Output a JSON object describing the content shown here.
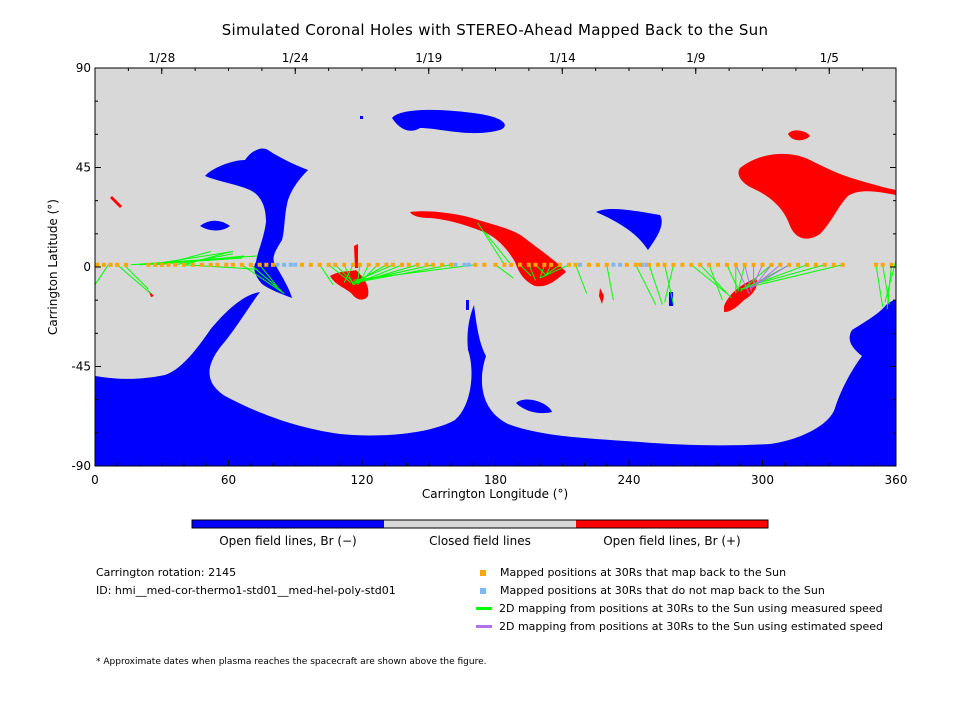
{
  "chart_data": {
    "type": "map",
    "title": "Simulated Coronal Holes with STEREO-Ahead Mapped Back to the Sun",
    "xlabel": "Carrington Longitude (°)",
    "ylabel": "Carrington Latitude (°)",
    "xlim": [
      0,
      360
    ],
    "ylim": [
      -90,
      90
    ],
    "x_ticks": [
      "0",
      "60",
      "120",
      "180",
      "240",
      "300",
      "360"
    ],
    "y_ticks": [
      "90",
      "45",
      "0",
      "-45",
      "-90"
    ],
    "top_date_ticks": [
      {
        "lon": 30,
        "label": "1/28"
      },
      {
        "lon": 90,
        "label": "1/24"
      },
      {
        "lon": 150,
        "label": "1/19"
      },
      {
        "lon": 210,
        "label": "1/14"
      },
      {
        "lon": 270,
        "label": "1/9"
      },
      {
        "lon": 330,
        "label": "1/5"
      }
    ],
    "colors": {
      "open_negative": "#0000ff",
      "closed": "#d8d8d8",
      "open_positive": "#ff0000",
      "mapped_back": "#ffa500",
      "not_mapped": "#7fb8f0",
      "measured_speed": "#00ff00",
      "estimated_speed": "#b070f0"
    },
    "colorbar": {
      "labels": [
        "Open field lines, Br (−)",
        "Closed field lines",
        "Open field lines, Br (+)"
      ]
    },
    "mapped_positions_orange": [
      1,
      4,
      7,
      10,
      14,
      24,
      27,
      30,
      33,
      36,
      40,
      44,
      48,
      52,
      55,
      59,
      62,
      66,
      70,
      74,
      77,
      80,
      93,
      97,
      101,
      105,
      108,
      112,
      116,
      119,
      123,
      127,
      131,
      134,
      138,
      141,
      145,
      149,
      152,
      156,
      160,
      171,
      175,
      180,
      184,
      187,
      191,
      195,
      198,
      202,
      205,
      209,
      213,
      216,
      222,
      226,
      230,
      239,
      243,
      245,
      249,
      253,
      256,
      260,
      264,
      268,
      272,
      276,
      280,
      284,
      288,
      292,
      296,
      300,
      304,
      308,
      312,
      316,
      320,
      324,
      328,
      332,
      336,
      351,
      354,
      358
    ],
    "mapped_positions_blue": [
      82,
      85,
      88,
      90,
      162,
      166,
      168,
      218,
      233,
      236,
      246,
      248
    ],
    "segments_measured": [
      [
        [
          6,
          1
        ],
        [
          0,
          -8
        ]
      ],
      [
        [
          10,
          1
        ],
        [
          25,
          -12
        ]
      ],
      [
        [
          13,
          1
        ],
        [
          24,
          -10
        ]
      ],
      [
        [
          16,
          1
        ],
        [
          73,
          5
        ]
      ],
      [
        [
          20,
          1
        ],
        [
          66,
          4
        ]
      ],
      [
        [
          24,
          1
        ],
        [
          62,
          7
        ]
      ],
      [
        [
          27,
          1
        ],
        [
          67,
          5
        ]
      ],
      [
        [
          30,
          1
        ],
        [
          52,
          7
        ]
      ],
      [
        [
          36,
          1
        ],
        [
          62,
          6
        ]
      ],
      [
        [
          40,
          1
        ],
        [
          61,
          7
        ]
      ],
      [
        [
          40,
          1
        ],
        [
          73,
          -1
        ]
      ],
      [
        [
          66,
          1
        ],
        [
          85,
          -12
        ]
      ],
      [
        [
          70,
          1
        ],
        [
          84,
          -11
        ]
      ],
      [
        [
          74,
          1
        ],
        [
          82,
          -9
        ]
      ],
      [
        [
          101,
          1
        ],
        [
          107,
          -8
        ]
      ],
      [
        [
          105,
          1
        ],
        [
          115,
          -7
        ]
      ],
      [
        [
          108,
          1
        ],
        [
          117,
          -8
        ]
      ],
      [
        [
          112,
          1
        ],
        [
          116,
          -8
        ]
      ],
      [
        [
          116,
          1
        ],
        [
          112,
          -7
        ]
      ],
      [
        [
          119,
          1
        ],
        [
          118,
          -7
        ]
      ],
      [
        [
          123,
          1
        ],
        [
          119,
          -7
        ]
      ],
      [
        [
          127,
          1
        ],
        [
          118,
          -8
        ]
      ],
      [
        [
          131,
          1
        ],
        [
          117,
          -7
        ]
      ],
      [
        [
          134,
          1
        ],
        [
          116,
          -7
        ]
      ],
      [
        [
          138,
          1
        ],
        [
          116,
          -8
        ]
      ],
      [
        [
          145,
          1
        ],
        [
          118,
          -7
        ]
      ],
      [
        [
          152,
          1
        ],
        [
          116,
          -7
        ]
      ],
      [
        [
          160,
          1
        ],
        [
          117,
          -7
        ]
      ],
      [
        [
          171,
          1
        ],
        [
          116,
          -6
        ]
      ],
      [
        [
          180,
          1
        ],
        [
          188,
          -5
        ]
      ],
      [
        [
          184,
          1
        ],
        [
          172,
          20
        ]
      ],
      [
        [
          187,
          1
        ],
        [
          175,
          16
        ]
      ],
      [
        [
          191,
          1
        ],
        [
          196,
          -4
        ]
      ],
      [
        [
          195,
          1
        ],
        [
          198,
          -6
        ]
      ],
      [
        [
          198,
          1
        ],
        [
          203,
          -4
        ]
      ],
      [
        [
          202,
          1
        ],
        [
          200,
          -5
        ]
      ],
      [
        [
          205,
          1
        ],
        [
          203,
          -3
        ]
      ],
      [
        [
          209,
          1
        ],
        [
          202,
          -4
        ]
      ],
      [
        [
          213,
          1
        ],
        [
          200,
          -5
        ]
      ],
      [
        [
          216,
          1
        ],
        [
          221,
          -12
        ]
      ],
      [
        [
          230,
          1
        ],
        [
          233,
          -15
        ]
      ],
      [
        [
          243,
          1
        ],
        [
          252,
          -17
        ]
      ],
      [
        [
          249,
          1
        ],
        [
          255,
          -17
        ]
      ],
      [
        [
          256,
          1
        ],
        [
          260,
          -17
        ]
      ],
      [
        [
          260,
          1
        ],
        [
          256,
          -16
        ]
      ],
      [
        [
          268,
          1
        ],
        [
          284,
          -12
        ]
      ],
      [
        [
          272,
          1
        ],
        [
          286,
          -14
        ]
      ],
      [
        [
          276,
          1
        ],
        [
          282,
          -15
        ]
      ],
      [
        [
          284,
          1
        ],
        [
          289,
          -10
        ]
      ],
      [
        [
          288,
          1
        ],
        [
          288,
          -12
        ]
      ],
      [
        [
          292,
          1
        ],
        [
          289,
          -11
        ]
      ],
      [
        [
          304,
          1
        ],
        [
          290,
          -11
        ]
      ],
      [
        [
          312,
          1
        ],
        [
          292,
          -10
        ]
      ],
      [
        [
          320,
          1
        ],
        [
          293,
          -9
        ]
      ],
      [
        [
          328,
          1
        ],
        [
          292,
          -9
        ]
      ],
      [
        [
          336,
          1
        ],
        [
          290,
          -10
        ]
      ],
      [
        [
          351,
          1
        ],
        [
          354,
          -18
        ]
      ],
      [
        [
          354,
          1
        ],
        [
          357,
          -17
        ]
      ],
      [
        [
          358,
          1
        ],
        [
          356,
          -19
        ]
      ],
      [
        [
          360,
          3
        ],
        [
          355,
          -16
        ]
      ]
    ],
    "segments_estimated": [
      [
        [
          288,
          1
        ],
        [
          294,
          -12
        ]
      ],
      [
        [
          292,
          1
        ],
        [
          295,
          -11
        ]
      ],
      [
        [
          296,
          1
        ],
        [
          296,
          -9
        ]
      ],
      [
        [
          300,
          1
        ],
        [
          295,
          -10
        ]
      ],
      [
        [
          304,
          1
        ],
        [
          297,
          -8
        ]
      ],
      [
        [
          308,
          1
        ],
        [
          296,
          -9
        ]
      ],
      [
        [
          312,
          1
        ],
        [
          297,
          -8
        ]
      ]
    ]
  },
  "legend": {
    "carrington_rotation": "Carrington rotation: 2145",
    "id": "ID: hmi__med-cor-thermo1-std01__med-hel-poly-std01",
    "items": [
      "Mapped positions at 30Rs that map back to the Sun",
      "Mapped positions at 30Rs that do not map back to the Sun",
      "2D mapping from positions at 30Rs to the Sun using measured speed",
      "2D mapping from positions at 30Rs to the Sun using estimated speed"
    ]
  },
  "footnote": "* Approximate dates when plasma reaches the spacecraft are shown above the figure."
}
